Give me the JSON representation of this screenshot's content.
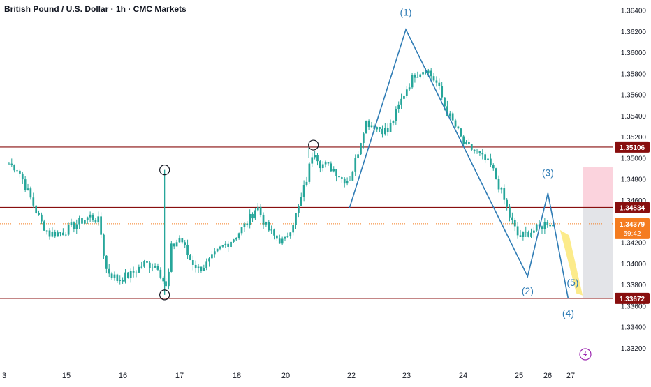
{
  "header": {
    "title": "British Pound / U.S. Dollar · 1h · CMC Markets"
  },
  "chart_data": {
    "type": "candlestick",
    "title": "British Pound / U.S. Dollar · 1h · CMC Markets",
    "ylim": [
      1.3305,
      1.365
    ],
    "y_ticks": [
      "1.33200",
      "1.33400",
      "1.33600",
      "1.33800",
      "1.34000",
      "1.34200",
      "1.34400",
      "1.34600",
      "1.34800",
      "1.35000",
      "1.35200",
      "1.35400",
      "1.35600",
      "1.35800",
      "1.36000",
      "1.36200",
      "1.36400"
    ],
    "x_ticks": [
      "3",
      "15",
      "16",
      "17",
      "18",
      "20",
      "22",
      "23",
      "24",
      "25",
      "26",
      "27"
    ],
    "price_path": [
      [
        0.2,
        1.3495
      ],
      [
        0.4,
        1.349
      ],
      [
        0.6,
        1.347
      ],
      [
        0.9,
        1.344
      ],
      [
        1.1,
        1.3428
      ],
      [
        1.4,
        1.343
      ],
      [
        1.7,
        1.3438
      ],
      [
        2.0,
        1.3445
      ],
      [
        2.2,
        1.344
      ],
      [
        2.35,
        1.3395
      ],
      [
        2.6,
        1.3385
      ],
      [
        2.9,
        1.339
      ],
      [
        3.2,
        1.34
      ],
      [
        3.5,
        1.3398
      ],
      [
        3.7,
        1.3375
      ],
      [
        3.8,
        1.3415
      ],
      [
        4.0,
        1.3425
      ],
      [
        4.2,
        1.3405
      ],
      [
        4.4,
        1.3395
      ],
      [
        4.6,
        1.34
      ],
      [
        4.9,
        1.3415
      ],
      [
        5.2,
        1.3425
      ],
      [
        5.5,
        1.344
      ],
      [
        5.7,
        1.3455
      ],
      [
        5.9,
        1.3435
      ],
      [
        6.1,
        1.3425
      ],
      [
        6.3,
        1.342
      ],
      [
        6.6,
        1.345
      ],
      [
        6.8,
        1.348
      ],
      [
        6.95,
        1.351
      ],
      [
        7.1,
        1.3495
      ],
      [
        7.4,
        1.349
      ],
      [
        7.6,
        1.348
      ],
      [
        7.75,
        1.348
      ],
      [
        7.9,
        1.35
      ],
      [
        8.1,
        1.3535
      ],
      [
        8.35,
        1.353
      ],
      [
        8.6,
        1.3525
      ],
      [
        8.8,
        1.3545
      ],
      [
        9.0,
        1.3565
      ],
      [
        9.2,
        1.358
      ],
      [
        9.45,
        1.3585
      ],
      [
        9.7,
        1.357
      ],
      [
        9.9,
        1.3545
      ],
      [
        10.1,
        1.353
      ],
      [
        10.3,
        1.3512
      ],
      [
        10.5,
        1.3508
      ],
      [
        10.7,
        1.35
      ],
      [
        10.9,
        1.3492
      ],
      [
        11.1,
        1.347
      ],
      [
        11.3,
        1.3445
      ],
      [
        11.5,
        1.3425
      ],
      [
        11.75,
        1.343
      ],
      [
        12.0,
        1.3435
      ],
      [
        12.15,
        1.344
      ],
      [
        12.3,
        1.3435
      ]
    ],
    "wicks": [
      {
        "x": 3.65,
        "low": 1.33705,
        "high": 1.3489
      },
      {
        "x": 6.85,
        "low": 1.35,
        "high": 1.3511
      }
    ],
    "horizontal_levels": [
      {
        "value": 1.35106,
        "label": "1.35106",
        "color": "#880e0e"
      },
      {
        "value": 1.34534,
        "label": "1.34534",
        "color": "#880e0e"
      },
      {
        "value": 1.33672,
        "label": "1.33672",
        "color": "#880e0e"
      }
    ],
    "current_price": {
      "value": 1.34379,
      "label": "1.34379",
      "countdown": "59:42",
      "color": "#f57c1f"
    },
    "wave_path": [
      [
        7.75,
        1.3453
      ],
      [
        9.0,
        1.3622
      ],
      [
        11.7,
        1.3388
      ],
      [
        12.15,
        1.3467
      ],
      [
        12.6,
        1.3367
      ]
    ],
    "wave_labels": [
      {
        "text": "(1)",
        "x": 9.0,
        "y": 1.3635
      },
      {
        "text": "(2)",
        "x": 11.7,
        "y": 1.3371
      },
      {
        "text": "(3)",
        "x": 12.15,
        "y": 1.3483
      },
      {
        "text": "(4)",
        "x": 12.6,
        "y": 1.335
      },
      {
        "text": "(5)",
        "x": 12.7,
        "y": 1.3379
      }
    ],
    "circles": [
      {
        "x": 3.65,
        "y": 1.3489
      },
      {
        "x": 3.65,
        "y": 1.33705
      },
      {
        "x": 6.95,
        "y": 1.35125
      }
    ],
    "colors": {
      "up": "#26a69a",
      "level": "#880e0e",
      "wave": "#2f7cb5",
      "current": "#f57c1f",
      "zone_red": "#fbd3dd",
      "zone_gray": "#d9dbe0",
      "yellow_arrow": "#fbe66e",
      "bolt": "#9c27b0"
    }
  }
}
